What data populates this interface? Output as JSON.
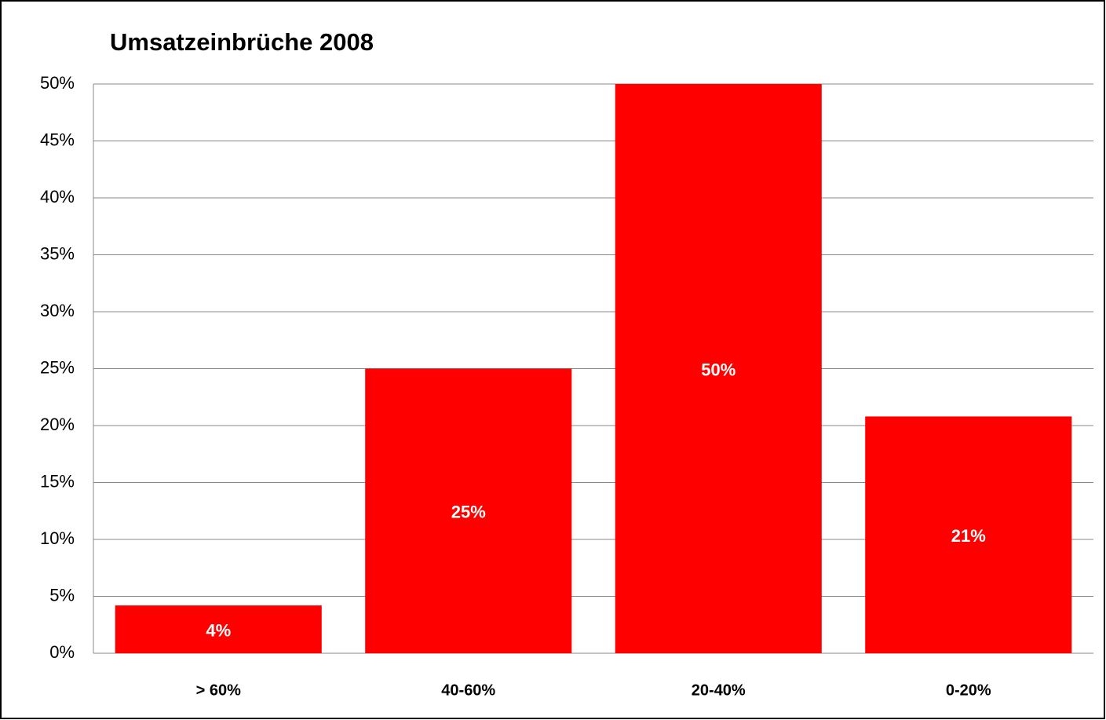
{
  "chart_data": {
    "type": "bar",
    "title": "Umsatzeinbrüche 2008",
    "categories": [
      "> 60%",
      "40-60%",
      "20-40%",
      "0-20%"
    ],
    "values": [
      4.2,
      25,
      50,
      20.8
    ],
    "value_labels": [
      "4%",
      "25%",
      "50%",
      "21%"
    ],
    "color": "#ff0000",
    "ylim": [
      0,
      50
    ],
    "yticks": [
      {
        "value": 0,
        "label": "0%"
      },
      {
        "value": 5,
        "label": "5%"
      },
      {
        "value": 10,
        "label": "10%"
      },
      {
        "value": 15,
        "label": "15%"
      },
      {
        "value": 20,
        "label": "20%"
      },
      {
        "value": 25,
        "label": "25%"
      },
      {
        "value": 30,
        "label": "30%"
      },
      {
        "value": 35,
        "label": "35%"
      },
      {
        "value": 40,
        "label": "40%"
      },
      {
        "value": 45,
        "label": "45%"
      },
      {
        "value": 50,
        "label": "50%"
      }
    ],
    "grid": true
  }
}
